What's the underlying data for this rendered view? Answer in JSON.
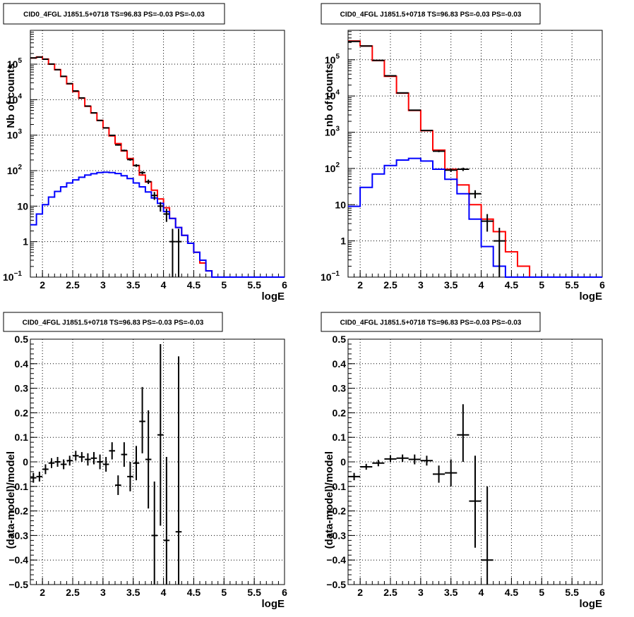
{
  "chart_data": [
    {
      "id": "top-left",
      "type": "step-histogram",
      "title": "CID0_4FGL J1851.5+0718 TS=96.83 PS=-0.03 PS=-0.03",
      "xlabel": "logE",
      "ylabel": "Nb of counts",
      "xlim": [
        1.8,
        6.0
      ],
      "ylim": [
        0.1,
        900000
      ],
      "yscale": "log",
      "grid": true,
      "xticks": [
        {
          "v": 2,
          "t": "2"
        },
        {
          "v": 2.5,
          "t": "2.5"
        },
        {
          "v": 3,
          "t": "3"
        },
        {
          "v": 3.5,
          "t": "3.5"
        },
        {
          "v": 4,
          "t": "4"
        },
        {
          "v": 4.5,
          "t": "4.5"
        },
        {
          "v": 5,
          "t": "5"
        },
        {
          "v": 5.5,
          "t": "5.5"
        },
        {
          "v": 6,
          "t": "6"
        }
      ],
      "yticks": [
        {
          "v": 0.1,
          "t": "10",
          "e": "−1"
        },
        {
          "v": 1,
          "t": "1"
        },
        {
          "v": 10,
          "t": "10"
        },
        {
          "v": 100,
          "t": "10",
          "e": "2"
        },
        {
          "v": 1000,
          "t": "10",
          "e": "3"
        },
        {
          "v": 10000,
          "t": "10",
          "e": "4"
        },
        {
          "v": 100000,
          "t": "10",
          "e": "5"
        }
      ],
      "bin_edges": [
        1.8,
        1.9,
        2.0,
        2.1,
        2.2,
        2.3,
        2.4,
        2.5,
        2.6,
        2.7,
        2.8,
        2.9,
        3.0,
        3.1,
        3.2,
        3.3,
        3.4,
        3.5,
        3.6,
        3.7,
        3.8,
        3.9,
        4.0,
        4.1,
        4.2,
        4.3,
        4.4,
        4.5,
        4.6,
        4.7,
        4.8,
        4.9,
        5.0,
        5.1,
        5.2,
        5.3,
        5.4,
        5.5,
        5.6,
        5.7,
        5.8,
        5.9,
        6.0
      ],
      "series": [
        {
          "color": "#ff0000",
          "values": [
            150000,
            160000,
            140000,
            100000,
            70000,
            45000,
            28000,
            17000,
            11000,
            6500,
            4200,
            2600,
            1600,
            950,
            580,
            360,
            220,
            140,
            75,
            48,
            28,
            16,
            9,
            4.5,
            2.5,
            1.5,
            0.9,
            0.5,
            0.25,
            0.15,
            0.1,
            0.1,
            0.1,
            0.1,
            0.1,
            0.1,
            0.1,
            0.1,
            0.1,
            0.1,
            0.1,
            0.1
          ]
        },
        {
          "color": "#0000ff",
          "values": [
            3,
            6,
            11,
            18,
            26,
            35,
            45,
            55,
            65,
            75,
            82,
            88,
            90,
            88,
            83,
            72,
            60,
            45,
            35,
            25,
            17,
            12,
            7,
            4.5,
            2.5,
            1.5,
            0.9,
            0.5,
            0.3,
            0.15,
            0.1,
            0.1,
            0.1,
            0.1,
            0.1,
            0.1,
            0.1,
            0.1,
            0.1,
            0.1,
            0.1,
            0.1
          ]
        }
      ],
      "points": [
        {
          "x": 1.85,
          "y": 150000,
          "lo": 149000,
          "hi": 151000
        },
        {
          "x": 1.95,
          "y": 158000,
          "lo": 157000,
          "hi": 159000
        },
        {
          "x": 2.05,
          "y": 138000,
          "lo": 137000,
          "hi": 139000
        },
        {
          "x": 2.15,
          "y": 101000,
          "lo": 100000,
          "hi": 102000
        },
        {
          "x": 2.25,
          "y": 70000,
          "lo": 69500,
          "hi": 70500
        },
        {
          "x": 2.35,
          "y": 45500,
          "lo": 45000,
          "hi": 46000
        },
        {
          "x": 2.45,
          "y": 28300,
          "lo": 28000,
          "hi": 28600
        },
        {
          "x": 2.55,
          "y": 17600,
          "lo": 17400,
          "hi": 17800
        },
        {
          "x": 2.65,
          "y": 11200,
          "lo": 11000,
          "hi": 11400
        },
        {
          "x": 2.75,
          "y": 6600,
          "lo": 6500,
          "hi": 6700
        },
        {
          "x": 2.85,
          "y": 4250,
          "lo": 4180,
          "hi": 4320
        },
        {
          "x": 2.95,
          "y": 2600,
          "lo": 2550,
          "hi": 2650
        },
        {
          "x": 3.05,
          "y": 1600,
          "lo": 1560,
          "hi": 1640
        },
        {
          "x": 3.15,
          "y": 990,
          "lo": 960,
          "hi": 1020
        },
        {
          "x": 3.25,
          "y": 530,
          "lo": 505,
          "hi": 555
        },
        {
          "x": 3.35,
          "y": 370,
          "lo": 350,
          "hi": 390
        },
        {
          "x": 3.45,
          "y": 205,
          "lo": 190,
          "hi": 220
        },
        {
          "x": 3.55,
          "y": 140,
          "lo": 128,
          "hi": 152
        },
        {
          "x": 3.65,
          "y": 88,
          "lo": 79,
          "hi": 97
        },
        {
          "x": 3.75,
          "y": 49,
          "lo": 42,
          "hi": 56
        },
        {
          "x": 3.85,
          "y": 20,
          "lo": 15,
          "hi": 25
        },
        {
          "x": 3.95,
          "y": 10,
          "lo": 7,
          "hi": 13
        },
        {
          "x": 4.05,
          "y": 6,
          "lo": 3.6,
          "hi": 8.4
        },
        {
          "x": 4.15,
          "y": 1,
          "lo": 0.1,
          "hi": 2.3
        },
        {
          "x": 4.25,
          "y": 1,
          "lo": 0.1,
          "hi": 2.3
        }
      ]
    },
    {
      "id": "top-right",
      "type": "step-histogram",
      "title": "CID0_4FGL J1851.5+0718 TS=96.83 PS=-0.03 PS=-0.03",
      "xlabel": "logE",
      "ylabel": "nb of counts",
      "xlim": [
        1.8,
        6.0
      ],
      "ylim": [
        0.1,
        650000
      ],
      "yscale": "log",
      "grid": true,
      "xticks": [
        {
          "v": 2,
          "t": "2"
        },
        {
          "v": 2.5,
          "t": "2.5"
        },
        {
          "v": 3,
          "t": "3"
        },
        {
          "v": 3.5,
          "t": "3.5"
        },
        {
          "v": 4,
          "t": "4"
        },
        {
          "v": 4.5,
          "t": "4.5"
        },
        {
          "v": 5,
          "t": "5"
        },
        {
          "v": 5.5,
          "t": "5.5"
        },
        {
          "v": 6,
          "t": "6"
        }
      ],
      "yticks": [
        {
          "v": 0.1,
          "t": "10",
          "e": "−1"
        },
        {
          "v": 1,
          "t": "1"
        },
        {
          "v": 10,
          "t": "10"
        },
        {
          "v": 100,
          "t": "10",
          "e": "2"
        },
        {
          "v": 1000,
          "t": "10",
          "e": "3"
        },
        {
          "v": 10000,
          "t": "10",
          "e": "4"
        },
        {
          "v": 100000,
          "t": "10",
          "e": "5"
        }
      ],
      "bin_edges": [
        1.8,
        2.0,
        2.2,
        2.4,
        2.6,
        2.8,
        3.0,
        3.2,
        3.4,
        3.6,
        3.8,
        4.0,
        4.2,
        4.4,
        4.6,
        4.8,
        5.0,
        5.2,
        5.4,
        5.6,
        5.8,
        6.0
      ],
      "series": [
        {
          "color": "#ff0000",
          "values": [
            330000,
            240000,
            95000,
            35000,
            12000,
            4000,
            1100,
            320,
            95,
            35,
            10,
            4,
            1.8,
            0.5,
            0.2,
            0.1,
            0.1,
            0.1,
            0.1,
            0.1,
            0.1
          ]
        },
        {
          "color": "#0000ff",
          "values": [
            9,
            30,
            70,
            120,
            170,
            190,
            160,
            95,
            50,
            20,
            4,
            0.7,
            0.2,
            0.1,
            0.1,
            0.1,
            0.1,
            0.1,
            0.1,
            0.1,
            0.1
          ]
        }
      ],
      "points": [
        {
          "x": 1.9,
          "y": 320000,
          "lo": 318000,
          "hi": 322000
        },
        {
          "x": 2.1,
          "y": 240000,
          "lo": 238000,
          "hi": 242000
        },
        {
          "x": 2.3,
          "y": 96000,
          "lo": 95000,
          "hi": 97000
        },
        {
          "x": 2.5,
          "y": 36000,
          "lo": 35500,
          "hi": 36500
        },
        {
          "x": 2.7,
          "y": 12200,
          "lo": 12000,
          "hi": 12400
        },
        {
          "x": 2.9,
          "y": 4050,
          "lo": 3980,
          "hi": 4120
        },
        {
          "x": 3.1,
          "y": 1120,
          "lo": 1080,
          "hi": 1160
        },
        {
          "x": 3.3,
          "y": 300,
          "lo": 282,
          "hi": 318
        },
        {
          "x": 3.5,
          "y": 90,
          "lo": 80,
          "hi": 100
        },
        {
          "x": 3.7,
          "y": 95,
          "lo": 85,
          "hi": 105
        },
        {
          "x": 3.9,
          "y": 20,
          "lo": 15,
          "hi": 25
        },
        {
          "x": 4.1,
          "y": 3.5,
          "lo": 1.8,
          "hi": 5.5
        },
        {
          "x": 4.3,
          "y": 1,
          "lo": 0.1,
          "hi": 2.3
        }
      ]
    },
    {
      "id": "bottom-left",
      "type": "scatter-errorbar",
      "title": "CID0_4FGL J1851.5+0718 TS=96.83 PS=-0.03 PS=-0.03",
      "xlabel": "logE",
      "ylabel": "(data-model)/model",
      "xlim": [
        1.8,
        6.0
      ],
      "ylim": [
        -0.5,
        0.5
      ],
      "yscale": "linear",
      "grid": true,
      "xticks": [
        {
          "v": 2,
          "t": "2"
        },
        {
          "v": 2.5,
          "t": "2.5"
        },
        {
          "v": 3,
          "t": "3"
        },
        {
          "v": 3.5,
          "t": "3.5"
        },
        {
          "v": 4,
          "t": "4"
        },
        {
          "v": 4.5,
          "t": "4.5"
        },
        {
          "v": 5,
          "t": "5"
        },
        {
          "v": 5.5,
          "t": "5.5"
        },
        {
          "v": 6,
          "t": "6"
        }
      ],
      "yticks": [
        {
          "v": -0.5,
          "t": "−0.5"
        },
        {
          "v": -0.4,
          "t": "−0.4"
        },
        {
          "v": -0.3,
          "t": "−0.3"
        },
        {
          "v": -0.2,
          "t": "−0.2"
        },
        {
          "v": -0.1,
          "t": "−0.1"
        },
        {
          "v": 0,
          "t": "0"
        },
        {
          "v": 0.1,
          "t": "0.1"
        },
        {
          "v": 0.2,
          "t": "0.2"
        },
        {
          "v": 0.3,
          "t": "0.3"
        },
        {
          "v": 0.4,
          "t": "0.4"
        },
        {
          "v": 0.5,
          "t": "0.5"
        }
      ],
      "points": [
        {
          "x": 1.85,
          "y": -0.065,
          "xerr": 0.05,
          "lo": -0.085,
          "hi": -0.045
        },
        {
          "x": 1.95,
          "y": -0.06,
          "xerr": 0.05,
          "lo": -0.08,
          "hi": -0.04
        },
        {
          "x": 2.05,
          "y": -0.03,
          "xerr": 0.05,
          "lo": -0.05,
          "hi": -0.01
        },
        {
          "x": 2.15,
          "y": -0.005,
          "xerr": 0.05,
          "lo": -0.025,
          "hi": 0.015
        },
        {
          "x": 2.25,
          "y": 0.0,
          "xerr": 0.05,
          "lo": -0.02,
          "hi": 0.02
        },
        {
          "x": 2.35,
          "y": -0.01,
          "xerr": 0.05,
          "lo": -0.03,
          "hi": 0.01
        },
        {
          "x": 2.45,
          "y": 0.005,
          "xerr": 0.05,
          "lo": -0.015,
          "hi": 0.025
        },
        {
          "x": 2.55,
          "y": 0.025,
          "xerr": 0.05,
          "lo": 0.005,
          "hi": 0.045
        },
        {
          "x": 2.65,
          "y": 0.02,
          "xerr": 0.05,
          "lo": 0.0,
          "hi": 0.04
        },
        {
          "x": 2.75,
          "y": 0.01,
          "xerr": 0.05,
          "lo": -0.015,
          "hi": 0.035
        },
        {
          "x": 2.85,
          "y": 0.015,
          "xerr": 0.05,
          "lo": -0.01,
          "hi": 0.04
        },
        {
          "x": 2.95,
          "y": 0.0,
          "xerr": 0.05,
          "lo": -0.03,
          "hi": 0.03
        },
        {
          "x": 3.05,
          "y": -0.01,
          "xerr": 0.05,
          "lo": -0.04,
          "hi": 0.02
        },
        {
          "x": 3.15,
          "y": 0.045,
          "xerr": 0.05,
          "lo": 0.01,
          "hi": 0.08
        },
        {
          "x": 3.25,
          "y": -0.095,
          "xerr": 0.05,
          "lo": -0.135,
          "hi": -0.055
        },
        {
          "x": 3.35,
          "y": 0.03,
          "xerr": 0.05,
          "lo": -0.02,
          "hi": 0.08
        },
        {
          "x": 3.45,
          "y": -0.06,
          "xerr": 0.05,
          "lo": -0.12,
          "hi": 0.0
        },
        {
          "x": 3.55,
          "y": -0.005,
          "xerr": 0.05,
          "lo": -0.075,
          "hi": 0.065
        },
        {
          "x": 3.65,
          "y": 0.165,
          "xerr": 0.05,
          "lo": 0.035,
          "hi": 0.305
        },
        {
          "x": 3.75,
          "y": 0.01,
          "xerr": 0.05,
          "lo": -0.19,
          "hi": 0.21
        },
        {
          "x": 3.85,
          "y": -0.3,
          "xerr": 0.05,
          "lo": -0.5,
          "hi": -0.08
        },
        {
          "x": 3.95,
          "y": 0.11,
          "xerr": 0.05,
          "lo": -0.26,
          "hi": 0.48
        },
        {
          "x": 4.05,
          "y": -0.32,
          "xerr": 0.05,
          "lo": -0.5,
          "hi": 0.02
        },
        {
          "x": 4.25,
          "y": -0.285,
          "xerr": 0.05,
          "lo": -0.5,
          "hi": 0.43
        }
      ]
    },
    {
      "id": "bottom-right",
      "type": "scatter-errorbar",
      "title": "CID0_4FGL J1851.5+0718 TS=96.83 PS=-0.03 PS=-0.03",
      "xlabel": "logE",
      "ylabel": "(data-model)/model",
      "xlim": [
        1.8,
        6.0
      ],
      "ylim": [
        -0.5,
        0.5
      ],
      "yscale": "linear",
      "grid": true,
      "xticks": [
        {
          "v": 2,
          "t": "2"
        },
        {
          "v": 2.5,
          "t": "2.5"
        },
        {
          "v": 3,
          "t": "3"
        },
        {
          "v": 3.5,
          "t": "3.5"
        },
        {
          "v": 4,
          "t": "4"
        },
        {
          "v": 4.5,
          "t": "4.5"
        },
        {
          "v": 5,
          "t": "5"
        },
        {
          "v": 5.5,
          "t": "5.5"
        },
        {
          "v": 6,
          "t": "6"
        }
      ],
      "yticks": [
        {
          "v": -0.5,
          "t": "−0.5"
        },
        {
          "v": -0.4,
          "t": "−0.4"
        },
        {
          "v": -0.3,
          "t": "−0.3"
        },
        {
          "v": -0.2,
          "t": "−0.2"
        },
        {
          "v": -0.1,
          "t": "−0.1"
        },
        {
          "v": 0,
          "t": "0"
        },
        {
          "v": 0.1,
          "t": "0.1"
        },
        {
          "v": 0.2,
          "t": "0.2"
        },
        {
          "v": 0.3,
          "t": "0.3"
        },
        {
          "v": 0.4,
          "t": "0.4"
        },
        {
          "v": 0.5,
          "t": "0.5"
        }
      ],
      "points": [
        {
          "x": 1.9,
          "y": -0.06,
          "xerr": 0.1,
          "lo": -0.075,
          "hi": -0.045
        },
        {
          "x": 2.1,
          "y": -0.02,
          "xerr": 0.1,
          "lo": -0.032,
          "hi": -0.008
        },
        {
          "x": 2.3,
          "y": -0.005,
          "xerr": 0.1,
          "lo": -0.018,
          "hi": 0.008
        },
        {
          "x": 2.5,
          "y": 0.012,
          "xerr": 0.1,
          "lo": -0.002,
          "hi": 0.026
        },
        {
          "x": 2.7,
          "y": 0.015,
          "xerr": 0.1,
          "lo": 0.0,
          "hi": 0.03
        },
        {
          "x": 2.9,
          "y": 0.01,
          "xerr": 0.1,
          "lo": -0.01,
          "hi": 0.03
        },
        {
          "x": 3.1,
          "y": 0.005,
          "xerr": 0.1,
          "lo": -0.015,
          "hi": 0.025
        },
        {
          "x": 3.3,
          "y": -0.05,
          "xerr": 0.1,
          "lo": -0.085,
          "hi": -0.015
        },
        {
          "x": 3.5,
          "y": -0.045,
          "xerr": 0.1,
          "lo": -0.1,
          "hi": 0.01
        },
        {
          "x": 3.7,
          "y": 0.11,
          "xerr": 0.1,
          "lo": 0.0,
          "hi": 0.235
        },
        {
          "x": 3.9,
          "y": -0.16,
          "xerr": 0.1,
          "lo": -0.35,
          "hi": 0.025
        },
        {
          "x": 4.1,
          "y": -0.4,
          "xerr": 0.1,
          "lo": -0.5,
          "hi": -0.1
        }
      ]
    }
  ]
}
